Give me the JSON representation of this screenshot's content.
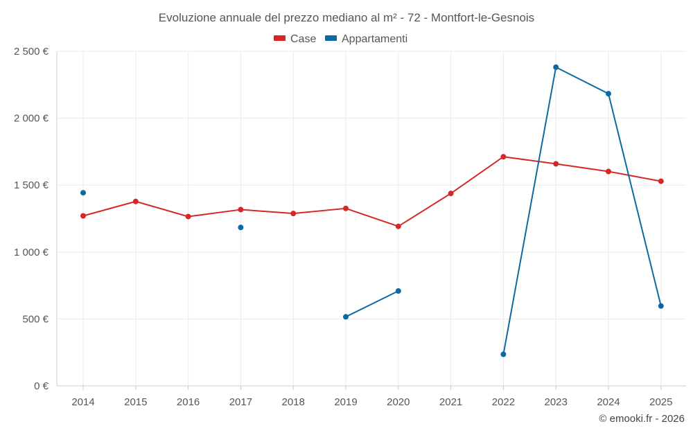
{
  "chart_data": {
    "type": "line",
    "title": "Evoluzione annuale del prezzo mediano al m² - 72 - Montfort-le-Gesnois",
    "xlabel": "",
    "ylabel": "",
    "categories": [
      "2014",
      "2015",
      "2016",
      "2017",
      "2018",
      "2019",
      "2020",
      "2021",
      "2022",
      "2023",
      "2024",
      "2025"
    ],
    "ylim": [
      0,
      2500
    ],
    "yticks": [
      0,
      500,
      1000,
      1500,
      2000,
      2500
    ],
    "ytick_labels": [
      "0 €",
      "500 €",
      "1 000 €",
      "1 500 €",
      "2 000 €",
      "2 500 €"
    ],
    "legend_position": "top-center",
    "grid": true,
    "series": [
      {
        "name": "Case",
        "color": "#d62728",
        "values": [
          1270,
          1378,
          1265,
          1317,
          1288,
          1326,
          1192,
          1438,
          1712,
          1659,
          1602,
          1529
        ]
      },
      {
        "name": "Appartamenti",
        "color": "#0a6aa1",
        "values": [
          1443,
          null,
          null,
          1184,
          null,
          516,
          709,
          null,
          236,
          2381,
          2183,
          597
        ]
      }
    ]
  },
  "credit": "© emooki.fr - 2026"
}
